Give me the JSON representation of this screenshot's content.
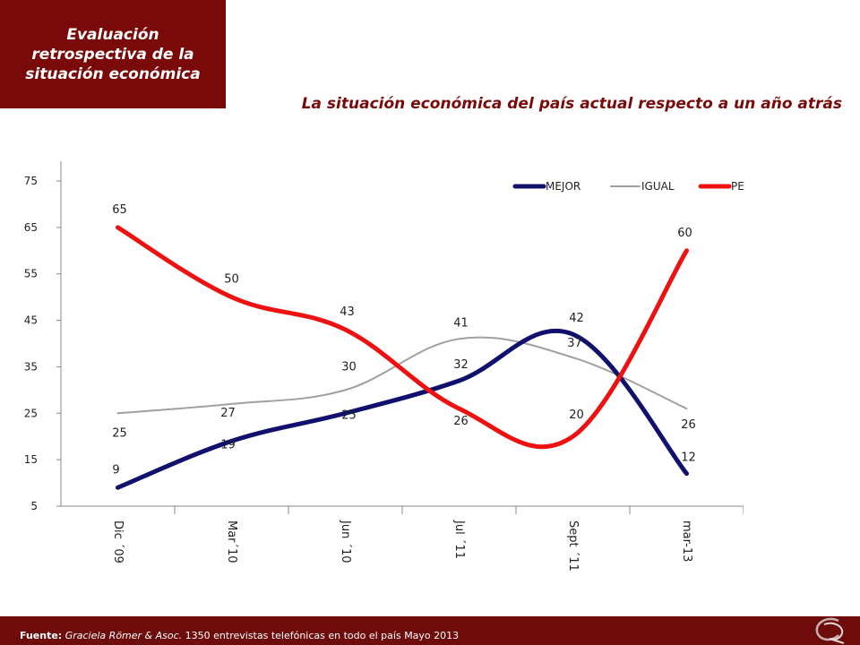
{
  "header": {
    "title": "Evaluación\nretrospectiva de la\nsituación económica",
    "subtitle": "La situación económica del país actual respecto a un año atrás"
  },
  "footer": {
    "source_label": "Fuente:",
    "source_org": "Graciela Römer & Asoc.",
    "source_detail": "1350 entrevistas telefónicas en todo el país  Mayo 2013"
  },
  "colors": {
    "title_bg": "#7a0a0a",
    "footer_bg": "#6e0b0b",
    "mejor": "#10106e",
    "igual": "#a0a0a0",
    "peor": "#ee1111"
  },
  "chart_data": {
    "type": "line",
    "categories": [
      "Dic ´09",
      "Mar´10",
      "Jun ´10",
      "Jul ´11",
      "Sept ´11",
      "mar-13"
    ],
    "series": [
      {
        "name": "MEJOR",
        "values": [
          9,
          19,
          25,
          32,
          42,
          12
        ]
      },
      {
        "name": "IGUAL",
        "values": [
          25,
          27,
          30,
          41,
          37,
          26
        ]
      },
      {
        "name": "PEOR",
        "values": [
          65,
          50,
          43,
          26,
          20,
          60
        ]
      }
    ],
    "y_ticks": [
      5,
      15,
      25,
      35,
      45,
      55,
      65,
      75
    ],
    "ylim": [
      5,
      75
    ],
    "legend": "top-right",
    "grid": false
  }
}
